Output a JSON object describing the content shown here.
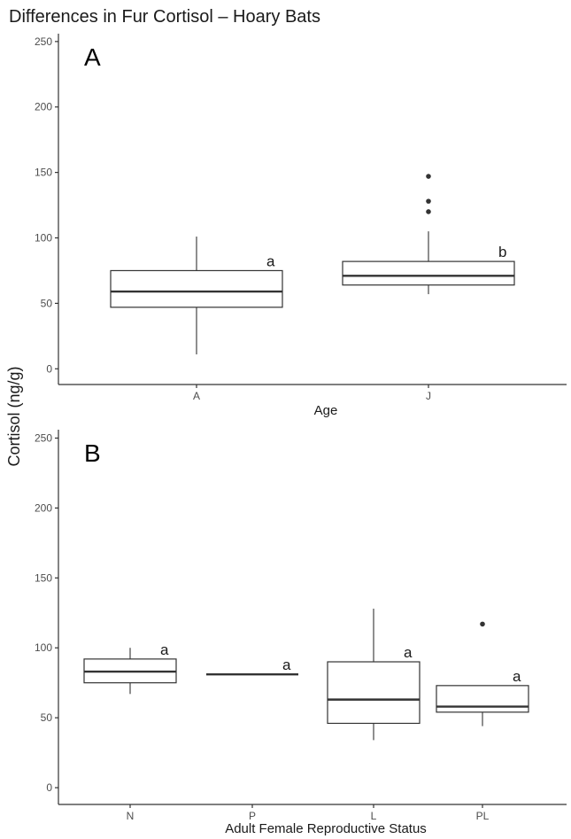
{
  "title": "Differences in Fur Cortisol – Hoary Bats",
  "ylabel": "Cortisol (ng/g)",
  "chart_data": [
    {
      "type": "box",
      "panel_label": "A",
      "xlabel": "Age",
      "ylim": [
        -12,
        256
      ],
      "yticks": [
        0,
        50,
        100,
        150,
        200,
        250
      ],
      "categories": [
        "A",
        "J"
      ],
      "boxes": [
        {
          "category": "A",
          "whisker_low": 11,
          "q1": 47,
          "median": 59,
          "q3": 75,
          "whisker_high": 101,
          "outliers": [],
          "letter": "a"
        },
        {
          "category": "J",
          "whisker_low": 57,
          "q1": 64,
          "median": 71,
          "q3": 82,
          "whisker_high": 105,
          "outliers": [
            120,
            128,
            147
          ],
          "letter": "b"
        }
      ]
    },
    {
      "type": "box",
      "panel_label": "B",
      "xlabel": "Adult Female Reproductive Status",
      "ylim": [
        -12,
        256
      ],
      "yticks": [
        0,
        50,
        100,
        150,
        200,
        250
      ],
      "categories": [
        "N",
        "P",
        "L",
        "PL"
      ],
      "boxes": [
        {
          "category": "N",
          "whisker_low": 67,
          "q1": 75,
          "median": 83,
          "q3": 92,
          "whisker_high": 100,
          "outliers": [],
          "letter": "a"
        },
        {
          "category": "P",
          "whisker_low": 81,
          "q1": 81,
          "median": 81,
          "q3": 81,
          "whisker_high": 81,
          "outliers": [],
          "letter": "a"
        },
        {
          "category": "L",
          "whisker_low": 34,
          "q1": 46,
          "median": 63,
          "q3": 90,
          "whisker_high": 128,
          "outliers": [],
          "letter": "a"
        },
        {
          "category": "PL",
          "whisker_low": 44,
          "q1": 54,
          "median": 58,
          "q3": 73,
          "whisker_high": 73,
          "outliers": [
            117
          ],
          "letter": "a"
        }
      ]
    }
  ]
}
